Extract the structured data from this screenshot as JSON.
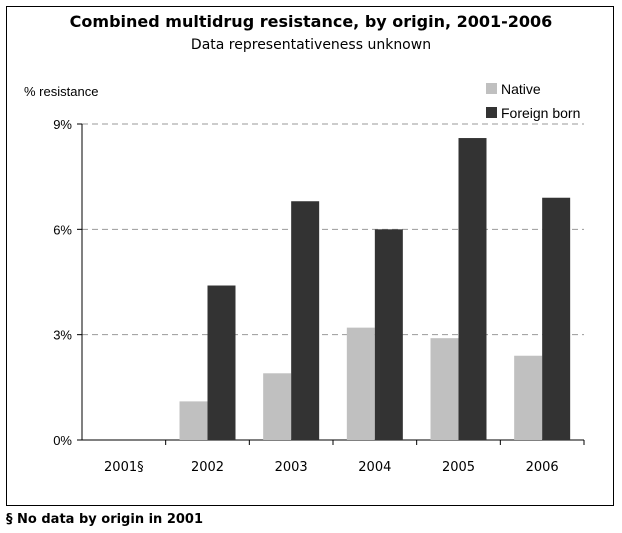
{
  "chart_data": {
    "type": "bar",
    "title": "Combined multidrug resistance, by origin, 2001-2006",
    "subtitle": "Data representativeness unknown",
    "ylabel": "% resistance",
    "xlabel": "",
    "categories": [
      "2001§",
      "2002",
      "2003",
      "2004",
      "2005",
      "2006"
    ],
    "series": [
      {
        "name": "Native",
        "values": [
          null,
          1.1,
          1.9,
          3.2,
          2.9,
          2.4
        ],
        "color": "#c0c0c0"
      },
      {
        "name": "Foreign born",
        "values": [
          null,
          4.4,
          6.8,
          6.0,
          8.6,
          6.9
        ],
        "color": "#333333"
      }
    ],
    "ylim": [
      0,
      9
    ],
    "yticks": [
      "0%",
      "3%",
      "6%",
      "9%"
    ],
    "ytick_values": [
      0,
      3,
      6,
      9
    ],
    "grid": "horizontal dashed",
    "legend_position": "top-right",
    "footnote": "§ No data by origin in 2001"
  }
}
